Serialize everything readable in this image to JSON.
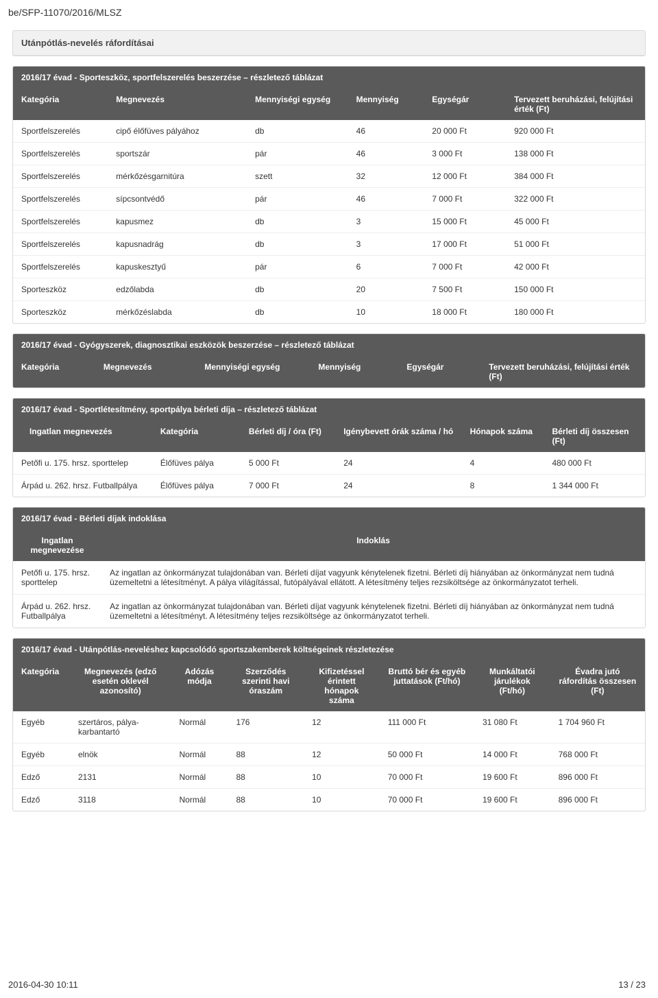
{
  "header_code": "be/SFP-11070/2016/MLSZ",
  "box1_title": "Utánpótlás-nevelés ráfordításai",
  "table1_title": "2016/17 évad - Sporteszköz, sportfelszerelés beszerzése – részletező táblázat",
  "table1_headers": [
    "Kategória",
    "Megnevezés",
    "Mennyiségi egység",
    "Mennyiség",
    "Egységár",
    "Tervezett beruházási, felújítási érték (Ft)"
  ],
  "table1_rows": [
    [
      "Sportfelszerelés",
      "cipő élőfüves pályához",
      "db",
      "46",
      "20 000 Ft",
      "920 000 Ft"
    ],
    [
      "Sportfelszerelés",
      "sportszár",
      "pár",
      "46",
      "3 000 Ft",
      "138 000 Ft"
    ],
    [
      "Sportfelszerelés",
      "mérkőzésgarnitúra",
      "szett",
      "32",
      "12 000 Ft",
      "384 000 Ft"
    ],
    [
      "Sportfelszerelés",
      "sípcsontvédő",
      "pár",
      "46",
      "7 000 Ft",
      "322 000 Ft"
    ],
    [
      "Sportfelszerelés",
      "kapusmez",
      "db",
      "3",
      "15 000 Ft",
      "45 000 Ft"
    ],
    [
      "Sportfelszerelés",
      "kapusnadrág",
      "db",
      "3",
      "17 000 Ft",
      "51 000 Ft"
    ],
    [
      "Sportfelszerelés",
      "kapuskesztyű",
      "pár",
      "6",
      "7 000 Ft",
      "42 000 Ft"
    ],
    [
      "Sporteszköz",
      "edzőlabda",
      "db",
      "20",
      "7 500 Ft",
      "150 000 Ft"
    ],
    [
      "Sporteszköz",
      "mérkőzéslabda",
      "db",
      "10",
      "18 000 Ft",
      "180 000 Ft"
    ]
  ],
  "table2_title": "2016/17 évad - Gyógyszerek, diagnosztikai eszközök beszerzése – részletező táblázat",
  "table2_headers": [
    "Kategória",
    "Megnevezés",
    "Mennyiségi egység",
    "Mennyiség",
    "Egységár",
    "Tervezett beruházási, felújítási érték (Ft)"
  ],
  "table3_title": "2016/17 évad - Sportlétesítmény, sportpálya bérleti díja – részletező táblázat",
  "table3_headers": [
    "Ingatlan megnevezés",
    "Kategória",
    "Bérleti díj / óra (Ft)",
    "Igénybevett órák száma / hó",
    "Hónapok száma",
    "Bérleti díj összesen (Ft)"
  ],
  "table3_rows": [
    [
      "Petőfi u. 175. hrsz. sporttelep",
      "Élőfüves pálya",
      "5 000 Ft",
      "24",
      "4",
      "480 000 Ft"
    ],
    [
      "Árpád u. 262. hrsz. Futballpálya",
      "Élőfüves pálya",
      "7 000 Ft",
      "24",
      "8",
      "1 344 000 Ft"
    ]
  ],
  "table4_title": "2016/17 évad - Bérleti díjak indoklása",
  "table4_headers": [
    "Ingatlan megnevezése",
    "Indoklás"
  ],
  "table4_rows": [
    [
      "Petőfi u. 175. hrsz. sporttelep",
      "Az ingatlan az önkormányzat tulajdonában van. Bérleti díjat vagyunk kénytelenek fizetni. Bérleti díj hiányában az önkormányzat nem tudná üzemeltetni a létesítményt. A pálya világítással, futópályával ellátott. A létesítmény teljes rezsiköltsége az önkormányzatot terheli."
    ],
    [
      "Árpád u. 262. hrsz. Futballpálya",
      "Az ingatlan az önkormányzat tulajdonában van. Bérleti díjat vagyunk kénytelenek fizetni. Bérleti díj hiányában az önkormányzat nem tudná üzemeltetni a létesítményt. A létesítmény teljes rezsiköltsége az önkormányzatot terheli."
    ]
  ],
  "table5_title": "2016/17 évad - Utánpótlás-neveléshez kapcsolódó sportszakemberek költségeinek részletezése",
  "table5_headers": [
    "Kategória",
    "Megnevezés (edző esetén oklevél azonosító)",
    "Adózás módja",
    "Szerződés szerinti havi óraszám",
    "Kifizetéssel érintett hónapok száma",
    "Bruttó bér és egyéb juttatások (Ft/hó)",
    "Munkáltatói járulékok (Ft/hó)",
    "Évadra jutó ráfordítás összesen (Ft)"
  ],
  "table5_rows": [
    [
      "Egyéb",
      "szertáros, pálya-karbantartó",
      "Normál",
      "176",
      "12",
      "111 000 Ft",
      "31 080 Ft",
      "1 704 960 Ft"
    ],
    [
      "Egyéb",
      "elnök",
      "Normál",
      "88",
      "12",
      "50 000 Ft",
      "14 000 Ft",
      "768 000 Ft"
    ],
    [
      "Edző",
      "2131",
      "Normál",
      "88",
      "10",
      "70 000 Ft",
      "19 600 Ft",
      "896 000 Ft"
    ],
    [
      "Edző",
      "3118",
      "Normál",
      "88",
      "10",
      "70 000 Ft",
      "19 600 Ft",
      "896 000 Ft"
    ]
  ],
  "footer_left": "2016-04-30 10:11",
  "footer_right": "13 / 23"
}
